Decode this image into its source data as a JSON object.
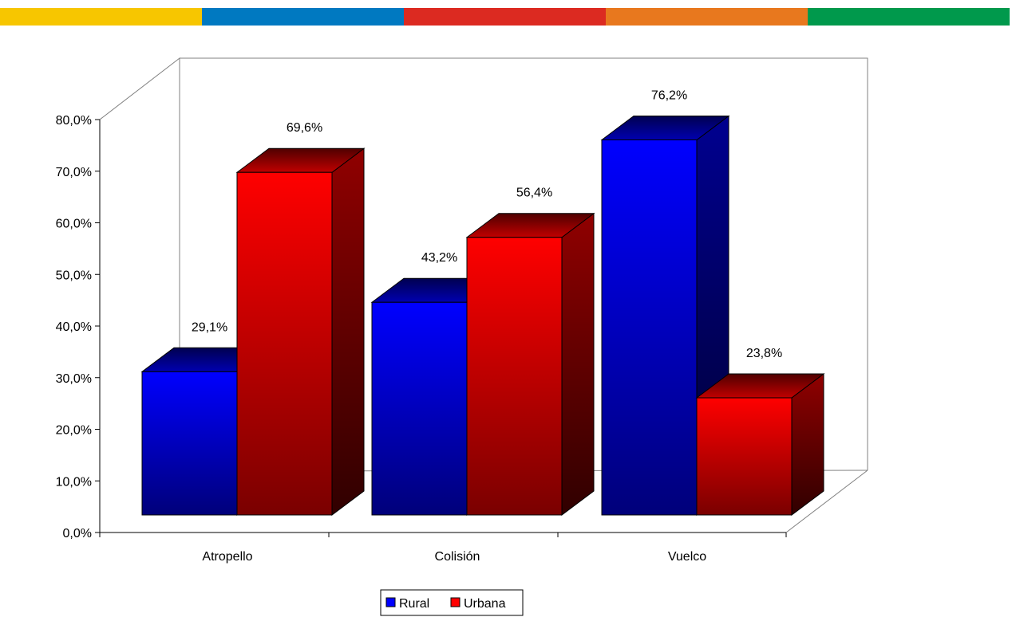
{
  "header_bar": {
    "segments": [
      "#F7C600",
      "#0079C1",
      "#DC2A21",
      "#E8781E",
      "#00994C"
    ]
  },
  "chart_data": {
    "type": "bar",
    "style": "3d-clustered-column",
    "categories": [
      "Atropello",
      "Colisión",
      "Vuelco"
    ],
    "series": [
      {
        "name": "Rural",
        "values": [
          29.1,
          43.2,
          76.2
        ],
        "labels": [
          "29,1%",
          "43,2%",
          "76,2%"
        ],
        "color": "#0000FF"
      },
      {
        "name": "Urbana",
        "values": [
          69.6,
          56.4,
          23.8
        ],
        "labels": [
          "69,6%",
          "56,4%",
          "23,8%"
        ],
        "color": "#FF0000"
      }
    ],
    "yticks": [
      "0,0%",
      "10,0%",
      "20,0%",
      "30,0%",
      "40,0%",
      "50,0%",
      "60,0%",
      "70,0%",
      "80,0%"
    ],
    "ylim": [
      0,
      80
    ],
    "title": "",
    "xlabel": "",
    "ylabel": "",
    "grid": false,
    "legend_position": "bottom"
  }
}
